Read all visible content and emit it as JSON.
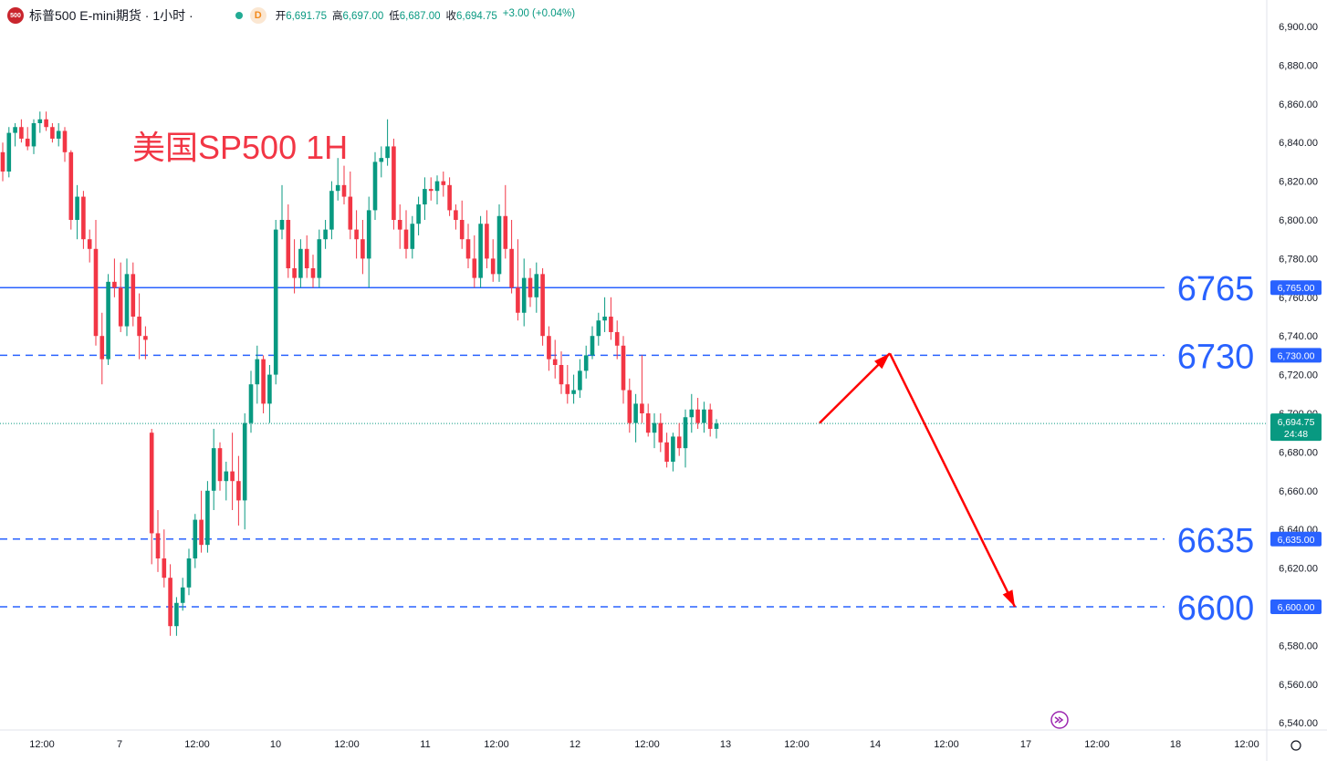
{
  "header": {
    "logo_text": "500",
    "symbol_title": "标普500 E-mini期货 · 1小时 ·",
    "badge_letter": "D",
    "open_label": "开",
    "open_value": "6,691.75",
    "high_label": "高",
    "high_value": "6,697.00",
    "low_label": "低",
    "low_value": "6,687.00",
    "close_label": "收",
    "close_value": "6,694.75",
    "change": "+3.00 (+0.04%)"
  },
  "colors": {
    "up": "#089981",
    "down": "#f23645",
    "level_line": "#2962ff",
    "level_text": "#2962ff",
    "arrow": "#ff0000",
    "annotation": "#f23645"
  },
  "chart_data": {
    "type": "candlestick",
    "title": "美国SP500 1H",
    "y_axis": {
      "range": [
        6530,
        6910
      ],
      "ticks": [
        "6,900.00",
        "6,880.00",
        "6,860.00",
        "6,840.00",
        "6,820.00",
        "6,800.00",
        "6,780.00",
        "6,760.00",
        "6,740.00",
        "6,720.00",
        "6,700.00",
        "6,680.00",
        "6,660.00",
        "6,640.00",
        "6,620.00",
        "6,600.00",
        "6,580.00",
        "6,560.00",
        "6,540.00"
      ]
    },
    "x_axis": {
      "ticks": [
        "12:00",
        "7",
        "12:00",
        "10",
        "12:00",
        "11",
        "12:00",
        "12",
        "12:00",
        "13",
        "12:00",
        "14",
        "12:00",
        "17",
        "12:00",
        "18",
        "12:00"
      ]
    },
    "levels": [
      {
        "value": 6765,
        "label": "6765",
        "axis_label": "6,765.00",
        "style": "solid"
      },
      {
        "value": 6730,
        "label": "6730",
        "axis_label": "6,730.00",
        "style": "dashed"
      },
      {
        "value": 6635,
        "label": "6635",
        "axis_label": "6,635.00",
        "style": "dashed"
      },
      {
        "value": 6600,
        "label": "6600",
        "axis_label": "6,600.00",
        "style": "dashed"
      }
    ],
    "last_price": {
      "value": 6694.75,
      "label": "6,694.75",
      "countdown": "24:48"
    },
    "projection": [
      {
        "value": 6695,
        "note": "current"
      },
      {
        "value": 6731,
        "note": "bounce to 6730"
      },
      {
        "value": 6600,
        "note": "drop to 6600"
      }
    ],
    "candles": [
      [
        6835,
        6840,
        6820,
        6825
      ],
      [
        6825,
        6848,
        6822,
        6845
      ],
      [
        6845,
        6850,
        6838,
        6848
      ],
      [
        6848,
        6852,
        6840,
        6842
      ],
      [
        6842,
        6848,
        6836,
        6838
      ],
      [
        6838,
        6852,
        6834,
        6850
      ],
      [
        6850,
        6856,
        6845,
        6852
      ],
      [
        6852,
        6856,
        6846,
        6848
      ],
      [
        6848,
        6850,
        6840,
        6842
      ],
      [
        6842,
        6850,
        6838,
        6846
      ],
      [
        6846,
        6848,
        6830,
        6835
      ],
      [
        6835,
        6836,
        6795,
        6800
      ],
      [
        6800,
        6818,
        6790,
        6812
      ],
      [
        6812,
        6815,
        6785,
        6790
      ],
      [
        6790,
        6795,
        6778,
        6785
      ],
      [
        6785,
        6800,
        6735,
        6740
      ],
      [
        6740,
        6752,
        6715,
        6728
      ],
      [
        6728,
        6772,
        6725,
        6768
      ],
      [
        6768,
        6780,
        6760,
        6765
      ],
      [
        6765,
        6778,
        6742,
        6745
      ],
      [
        6745,
        6780,
        6740,
        6772
      ],
      [
        6772,
        6778,
        6745,
        6750
      ],
      [
        6750,
        6762,
        6728,
        6740
      ],
      [
        6740,
        6745,
        6728,
        6738
      ],
      [
        6690,
        6692,
        6622,
        6638
      ],
      [
        6638,
        6650,
        6618,
        6625
      ],
      [
        6625,
        6640,
        6610,
        6615
      ],
      [
        6615,
        6622,
        6585,
        6590
      ],
      [
        6590,
        6605,
        6585,
        6602
      ],
      [
        6602,
        6615,
        6598,
        6610
      ],
      [
        6610,
        6630,
        6606,
        6625
      ],
      [
        6625,
        6648,
        6620,
        6645
      ],
      [
        6645,
        6660,
        6628,
        6632
      ],
      [
        6632,
        6665,
        6628,
        6660
      ],
      [
        6660,
        6692,
        6650,
        6682
      ],
      [
        6682,
        6685,
        6660,
        6665
      ],
      [
        6665,
        6675,
        6655,
        6670
      ],
      [
        6670,
        6690,
        6650,
        6665
      ],
      [
        6665,
        6678,
        6642,
        6655
      ],
      [
        6655,
        6700,
        6640,
        6695
      ],
      [
        6695,
        6722,
        6690,
        6715
      ],
      [
        6715,
        6735,
        6705,
        6728
      ],
      [
        6728,
        6730,
        6700,
        6705
      ],
      [
        6705,
        6725,
        6695,
        6720
      ],
      [
        6720,
        6800,
        6715,
        6795
      ],
      [
        6795,
        6818,
        6790,
        6800
      ],
      [
        6800,
        6808,
        6770,
        6775
      ],
      [
        6775,
        6790,
        6762,
        6770
      ],
      [
        6770,
        6790,
        6765,
        6785
      ],
      [
        6785,
        6792,
        6770,
        6775
      ],
      [
        6775,
        6782,
        6765,
        6770
      ],
      [
        6770,
        6795,
        6765,
        6790
      ],
      [
        6790,
        6800,
        6785,
        6795
      ],
      [
        6795,
        6820,
        6790,
        6815
      ],
      [
        6815,
        6832,
        6810,
        6818
      ],
      [
        6818,
        6828,
        6808,
        6812
      ],
      [
        6812,
        6825,
        6790,
        6795
      ],
      [
        6795,
        6805,
        6780,
        6790
      ],
      [
        6790,
        6800,
        6772,
        6780
      ],
      [
        6780,
        6812,
        6765,
        6805
      ],
      [
        6805,
        6835,
        6800,
        6830
      ],
      [
        6830,
        6838,
        6822,
        6832
      ],
      [
        6832,
        6852,
        6828,
        6838
      ],
      [
        6838,
        6842,
        6795,
        6800
      ],
      [
        6800,
        6808,
        6785,
        6795
      ],
      [
        6795,
        6805,
        6780,
        6785
      ],
      [
        6785,
        6802,
        6780,
        6798
      ],
      [
        6798,
        6812,
        6792,
        6808
      ],
      [
        6808,
        6822,
        6800,
        6816
      ],
      [
        6816,
        6822,
        6810,
        6815
      ],
      [
        6815,
        6823,
        6808,
        6820
      ],
      [
        6820,
        6825,
        6812,
        6818
      ],
      [
        6818,
        6822,
        6802,
        6805
      ],
      [
        6805,
        6808,
        6795,
        6800
      ],
      [
        6800,
        6810,
        6785,
        6790
      ],
      [
        6790,
        6798,
        6775,
        6780
      ],
      [
        6780,
        6792,
        6765,
        6770
      ],
      [
        6770,
        6802,
        6765,
        6798
      ],
      [
        6798,
        6805,
        6775,
        6780
      ],
      [
        6780,
        6790,
        6768,
        6772
      ],
      [
        6772,
        6808,
        6768,
        6802
      ],
      [
        6802,
        6818,
        6780,
        6785
      ],
      [
        6785,
        6800,
        6762,
        6765
      ],
      [
        6765,
        6790,
        6748,
        6752
      ],
      [
        6752,
        6780,
        6745,
        6770
      ],
      [
        6770,
        6775,
        6755,
        6760
      ],
      [
        6760,
        6778,
        6752,
        6772
      ],
      [
        6772,
        6775,
        6735,
        6740
      ],
      [
        6740,
        6745,
        6722,
        6728
      ],
      [
        6728,
        6738,
        6718,
        6725
      ],
      [
        6725,
        6732,
        6710,
        6715
      ],
      [
        6715,
        6725,
        6705,
        6710
      ],
      [
        6710,
        6720,
        6705,
        6712
      ],
      [
        6712,
        6728,
        6708,
        6722
      ],
      [
        6722,
        6735,
        6718,
        6730
      ],
      [
        6730,
        6745,
        6728,
        6740
      ],
      [
        6740,
        6752,
        6735,
        6748
      ],
      [
        6748,
        6760,
        6742,
        6750
      ],
      [
        6750,
        6760,
        6738,
        6742
      ],
      [
        6742,
        6748,
        6728,
        6735
      ],
      [
        6735,
        6740,
        6705,
        6712
      ],
      [
        6712,
        6718,
        6690,
        6695
      ],
      [
        6695,
        6710,
        6685,
        6705
      ],
      [
        6705,
        6730,
        6695,
        6700
      ],
      [
        6700,
        6705,
        6688,
        6690
      ],
      [
        6690,
        6700,
        6682,
        6695
      ],
      [
        6695,
        6700,
        6680,
        6685
      ],
      [
        6685,
        6690,
        6672,
        6675
      ],
      [
        6675,
        6690,
        6670,
        6688
      ],
      [
        6688,
        6695,
        6678,
        6682
      ],
      [
        6682,
        6702,
        6672,
        6698
      ],
      [
        6698,
        6710,
        6690,
        6702
      ],
      [
        6702,
        6708,
        6692,
        6695
      ],
      [
        6695,
        6706,
        6690,
        6702
      ],
      [
        6702,
        6705,
        6688,
        6692
      ],
      [
        6692,
        6697,
        6687,
        6694.75
      ]
    ]
  }
}
